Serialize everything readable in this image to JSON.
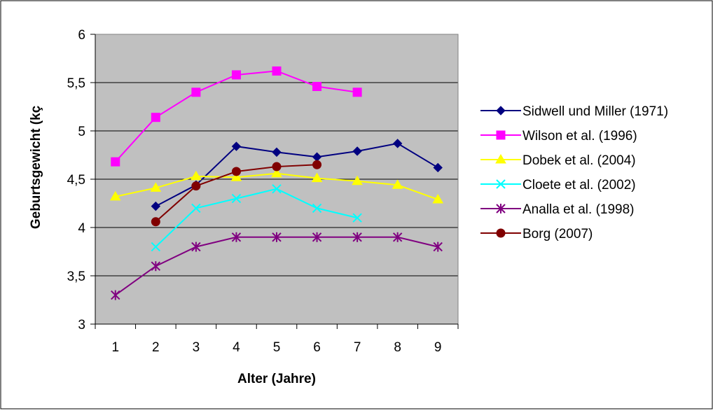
{
  "chart_data": {
    "type": "line",
    "title": "",
    "xlabel": "Alter (Jahre)",
    "ylabel": "Geburtsgewicht (kg)",
    "ylabel_visible": "Geburtsgewicht (kç",
    "categories": [
      "1",
      "2",
      "3",
      "4",
      "5",
      "6",
      "7",
      "8",
      "9"
    ],
    "ylim": [
      3,
      6
    ],
    "yticks": [
      "3",
      "3,5",
      "4",
      "4,5",
      "5",
      "5,5",
      "6"
    ],
    "ytick_values": [
      3,
      3.5,
      4,
      4.5,
      5,
      5.5,
      6
    ],
    "grid": true,
    "plot_background": "#c0c0c0",
    "legend_placement": "right",
    "series": [
      {
        "name": "Sidwell und Miller (1971)",
        "color": "#000080",
        "marker": "diamond",
        "values": [
          null,
          4.22,
          4.44,
          4.84,
          4.78,
          4.73,
          4.79,
          4.87,
          4.62
        ]
      },
      {
        "name": "Wilson et al. (1996)",
        "color": "#ff00ff",
        "marker": "square",
        "values": [
          4.68,
          5.14,
          5.4,
          5.58,
          5.62,
          5.46,
          5.4,
          null,
          null
        ]
      },
      {
        "name": "Dobek et al. (2004)",
        "color": "#ffff00",
        "marker": "triangle",
        "values": [
          4.32,
          4.41,
          4.53,
          4.52,
          4.56,
          4.51,
          4.48,
          4.44,
          4.29
        ]
      },
      {
        "name": "Cloete et al. (2002)",
        "color": "#00ffff",
        "marker": "x",
        "values": [
          null,
          3.8,
          4.2,
          4.3,
          4.4,
          4.2,
          4.1,
          null,
          null
        ]
      },
      {
        "name": "Analla et al. (1998)",
        "color": "#800080",
        "marker": "star",
        "values": [
          3.3,
          3.6,
          3.8,
          3.9,
          3.9,
          3.9,
          3.9,
          3.9,
          3.8
        ]
      },
      {
        "name": "Borg (2007)",
        "color": "#800000",
        "marker": "circle",
        "values": [
          null,
          4.06,
          4.43,
          4.58,
          4.63,
          4.65,
          null,
          null,
          null
        ]
      }
    ]
  }
}
